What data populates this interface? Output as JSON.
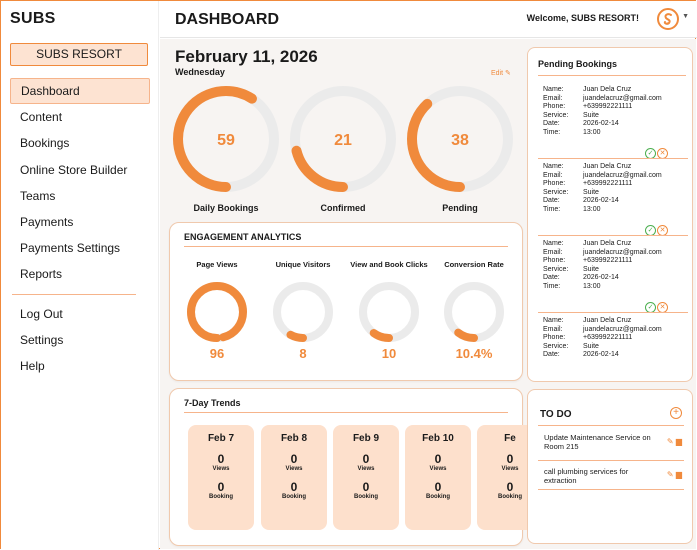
{
  "app": {
    "brand": "SUBS",
    "resort": "SUBS RESORT"
  },
  "header": {
    "title": "DASHBOARD",
    "welcome": "Welcome, SUBS RESORT!"
  },
  "nav": {
    "items": [
      "Dashboard",
      "Content",
      "Bookings",
      "Online Store Builder",
      "Teams",
      "Payments",
      "Payments Settings",
      "Reports"
    ],
    "secondary": [
      "Log Out",
      "Settings",
      "Help"
    ],
    "active": "Dashboard"
  },
  "summary": {
    "date": "February 11, 2026",
    "weekday": "Wednesday",
    "edit": "Edit",
    "rings": [
      {
        "label": "Daily Bookings",
        "value": "59",
        "fill": 0.59
      },
      {
        "label": "Confirmed",
        "value": "21",
        "fill": 0.21
      },
      {
        "label": "Pending",
        "value": "38",
        "fill": 0.38
      }
    ]
  },
  "engagement": {
    "title": "ENGAGEMENT ANALYTICS",
    "metrics": [
      {
        "label": "Page Views",
        "value": "96",
        "fill": 0.96
      },
      {
        "label": "Unique Visitors",
        "value": "8",
        "fill": 0.08
      },
      {
        "label": "View and Book Clicks",
        "value": "10",
        "fill": 0.1
      },
      {
        "label": "Conversion Rate",
        "value": "10.4%",
        "fill": 0.104
      }
    ]
  },
  "trends": {
    "title": "7-Day Trends",
    "views_label": "Views",
    "booking_label": "Booking",
    "days": [
      {
        "date": "Feb 7",
        "views": "0",
        "bookings": "0"
      },
      {
        "date": "Feb 8",
        "views": "0",
        "bookings": "0"
      },
      {
        "date": "Feb 9",
        "views": "0",
        "bookings": "0"
      },
      {
        "date": "Feb 10",
        "views": "0",
        "bookings": "0"
      },
      {
        "date": "Fe",
        "views": "0",
        "bookings": "0"
      }
    ]
  },
  "pending": {
    "title": "Pending Bookings",
    "labels": {
      "name": "Name:",
      "email": "Email:",
      "phone": "Phone:",
      "service": "Service:",
      "date": "Date:",
      "time": "Time:"
    },
    "bookings": [
      {
        "name": "Juan Dela Cruz",
        "email": "juandelacruz@gmail.com",
        "phone": "+639992221111",
        "service": "Suite",
        "date": "2026-02-14",
        "time": "13:00"
      },
      {
        "name": "Juan Dela Cruz",
        "email": "juandelacruz@gmail.com",
        "phone": "+639992221111",
        "service": "Suite",
        "date": "2026-02-14",
        "time": "13:00"
      },
      {
        "name": "Juan Dela Cruz",
        "email": "juandelacruz@gmail.com",
        "phone": "+639992221111",
        "service": "Suite",
        "date": "2026-02-14",
        "time": "13:00"
      },
      {
        "name": "Juan Dela Cruz",
        "email": "juandelacruz@gmail.com",
        "phone": "+639992221111",
        "service": "Suite",
        "date": "2026-02-14",
        "time": ""
      }
    ]
  },
  "todo": {
    "title": "TO DO",
    "items": [
      "Update Maintenance Service on Room 215",
      "call plumbing services for extraction"
    ]
  },
  "colors": {
    "accent": "#f08a3c",
    "accent_light": "#fde3d2",
    "track": "#ebebeb"
  }
}
